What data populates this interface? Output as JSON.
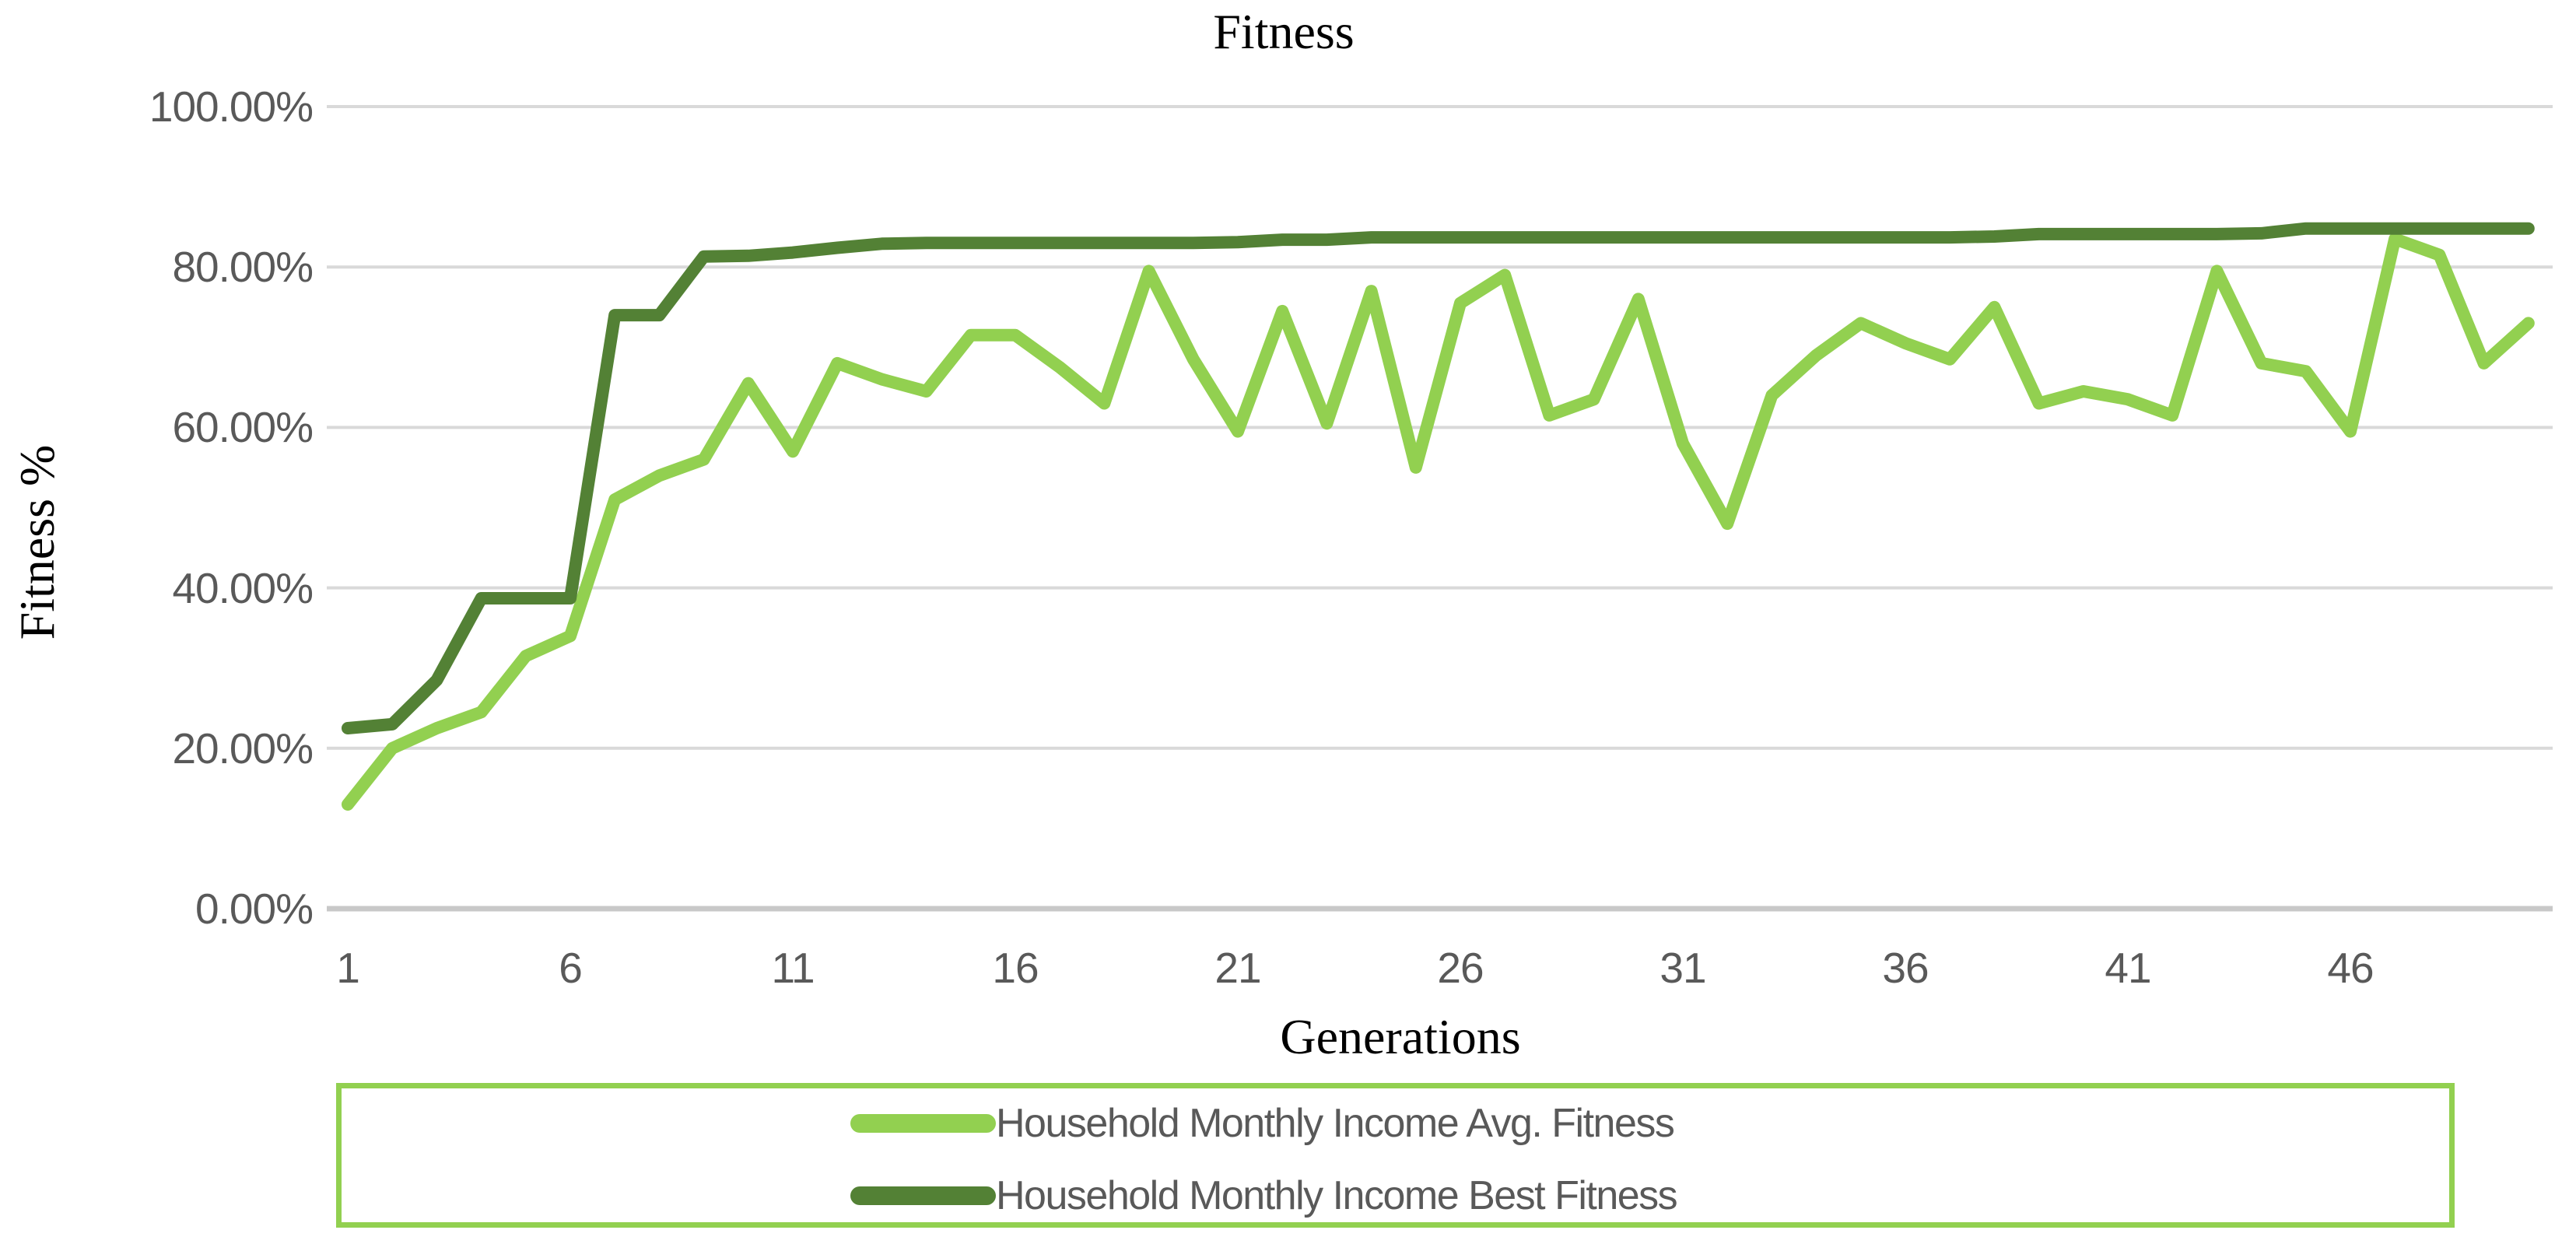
{
  "title": "Fitness",
  "axes": {
    "x_title": "Generations",
    "y_title": "Fitness %",
    "y_tick_labels": [
      "100.00%",
      "80.00%",
      "60.00%",
      "40.00%",
      "20.00%",
      "0.00%"
    ],
    "y_tick_values": [
      100,
      80,
      60,
      40,
      20,
      0
    ],
    "x_tick_gens": [
      1,
      6,
      11,
      16,
      21,
      26,
      31,
      36,
      41,
      46
    ]
  },
  "legend": {
    "entries": [
      {
        "id": "avg",
        "label": "Household Monthly Income Avg. Fitness",
        "color": "#92d050"
      },
      {
        "id": "best",
        "label": "Household Monthly Income Best Fitness",
        "color": "#538135"
      }
    ]
  },
  "colors": {
    "avg_line": "#92d050",
    "best_line": "#538135",
    "gridline": "#d9d9d9",
    "axis_line": "#c8c8c8",
    "tick_text": "#595959",
    "legend_border": "#92d050"
  },
  "chart_data": {
    "type": "line",
    "title": "Fitness",
    "xlabel": "Generations",
    "ylabel": "Fitness %",
    "ylim": [
      0,
      100
    ],
    "y_tick_format": "percent_2dp",
    "grid": "horizontal",
    "legend_position": "bottom",
    "x": [
      1,
      2,
      3,
      4,
      5,
      6,
      7,
      8,
      9,
      10,
      11,
      12,
      13,
      14,
      15,
      16,
      17,
      18,
      19,
      20,
      21,
      22,
      23,
      24,
      25,
      26,
      27,
      28,
      29,
      30,
      31,
      32,
      33,
      34,
      35,
      36,
      37,
      38,
      39,
      40,
      41,
      42,
      43,
      44,
      45,
      46,
      47,
      48,
      49,
      50
    ],
    "series": [
      {
        "name": "Household Monthly Income Avg. Fitness",
        "color": "#92d050",
        "values": [
          13,
          20,
          22.5,
          24.5,
          31.5,
          34,
          51,
          54,
          56,
          65.5,
          57,
          68,
          66,
          64.5,
          71.5,
          71.5,
          67.5,
          63,
          79.5,
          68.5,
          59.5,
          74.5,
          60.5,
          77,
          55,
          75.5,
          79,
          61.5,
          63.5,
          76,
          58,
          48,
          64,
          69,
          73,
          70.5,
          68.5,
          75,
          63,
          64.5,
          63.5,
          61.5,
          79.5,
          68,
          67,
          59.5,
          83.5,
          81.5,
          68,
          73
        ]
      },
      {
        "name": "Household Monthly Income Best Fitness",
        "color": "#538135",
        "values": [
          22.5,
          23,
          28.5,
          38.7,
          38.7,
          38.7,
          74,
          74,
          81.3,
          81.4,
          81.8,
          82.4,
          82.9,
          83,
          83,
          83,
          83,
          83,
          83,
          83,
          83.1,
          83.4,
          83.4,
          83.7,
          83.7,
          83.7,
          83.7,
          83.7,
          83.7,
          83.7,
          83.7,
          83.7,
          83.7,
          83.7,
          83.7,
          83.7,
          83.7,
          83.8,
          84.1,
          84.1,
          84.1,
          84.1,
          84.1,
          84.2,
          84.8,
          84.8,
          84.8,
          84.8,
          84.8,
          84.8
        ]
      }
    ]
  }
}
